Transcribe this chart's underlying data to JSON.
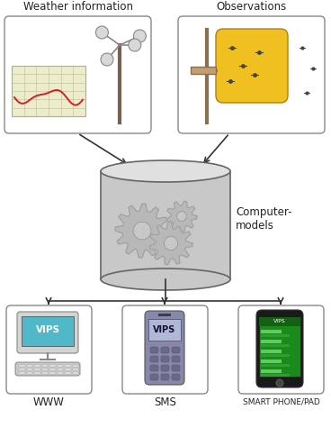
{
  "bg_color": "#ffffff",
  "title_weather": "Weather information",
  "title_obs": "Observations",
  "label_computer": "Computer-\nmodels",
  "label_www": "WWW",
  "label_sms": "SMS",
  "label_smartphone": "SMART PHONE/PAD",
  "label_vips": "VIPS",
  "box_color": "#ffffff",
  "box_edge": "#888888",
  "cylinder_color": "#c8c8c8",
  "cylinder_edge": "#666666",
  "gear_color": "#b8b8b8",
  "chart_bg": "#ededcc",
  "chart_line": "#cc2222",
  "yellow_box": "#f0c020",
  "phone_bg": "#1a1a1a",
  "screen_bg": "#1a8a1a",
  "computer_screen": "#50b8c8",
  "sms_phone_bg": "#8888aa",
  "sms_screen": "#9999cc",
  "arrow_color": "#333333"
}
